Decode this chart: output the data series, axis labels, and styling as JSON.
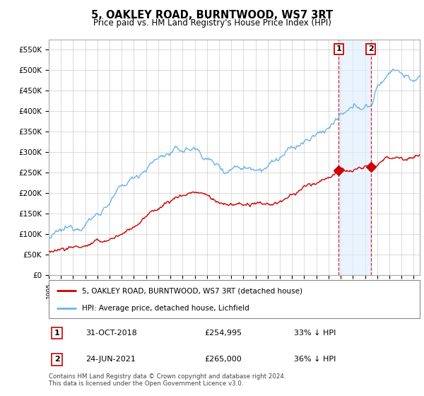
{
  "title": "5, OAKLEY ROAD, BURNTWOOD, WS7 3RT",
  "subtitle": "Price paid vs. HM Land Registry's House Price Index (HPI)",
  "ylabel_ticks": [
    "£0",
    "£50K",
    "£100K",
    "£150K",
    "£200K",
    "£250K",
    "£300K",
    "£350K",
    "£400K",
    "£450K",
    "£500K",
    "£550K"
  ],
  "ytick_values": [
    0,
    50000,
    100000,
    150000,
    200000,
    250000,
    300000,
    350000,
    400000,
    450000,
    500000,
    550000
  ],
  "ylim": [
    0,
    575000
  ],
  "xlim_start": 1995.0,
  "xlim_end": 2025.5,
  "hpi_color": "#6cb4e8",
  "price_color": "#cc0000",
  "marker1_date": 2018.83,
  "marker2_date": 2021.48,
  "marker1_price": 254995,
  "marker2_price": 265000,
  "legend_label_price": "5, OAKLEY ROAD, BURNTWOOD, WS7 3RT (detached house)",
  "legend_label_hpi": "HPI: Average price, detached house, Lichfield",
  "table_rows": [
    {
      "num": "1",
      "date": "31-OCT-2018",
      "price": "£254,995",
      "hpi": "33% ↓ HPI"
    },
    {
      "num": "2",
      "date": "24-JUN-2021",
      "price": "£265,000",
      "hpi": "36% ↓ HPI"
    }
  ],
  "footnote": "Contains HM Land Registry data © Crown copyright and database right 2024.\nThis data is licensed under the Open Government Licence v3.0.",
  "background_color": "#ffffff",
  "grid_color": "#cccccc",
  "title_fontsize": 10.5,
  "subtitle_fontsize": 8.5,
  "tick_fontsize": 7.5
}
